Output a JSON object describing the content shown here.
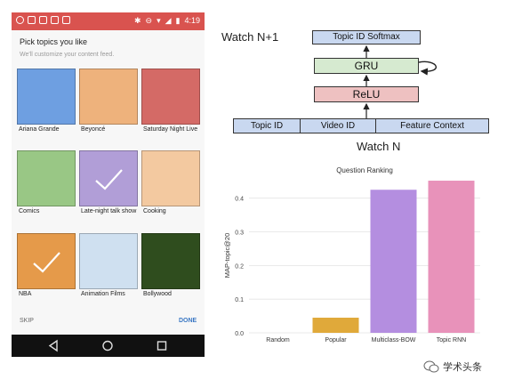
{
  "phone": {
    "status_time": "4:19",
    "title": "Pick topics you like",
    "subtitle": "We'll customize your content feed.",
    "tiles": [
      {
        "label": "Ariana Grande",
        "color": "#6e9fe1",
        "selected": false
      },
      {
        "label": "Beyoncé",
        "color": "#eeb27c",
        "selected": false
      },
      {
        "label": "Saturday Night Live",
        "color": "#d46a66",
        "selected": false
      },
      {
        "label": "Comics",
        "color": "#99c785",
        "selected": false
      },
      {
        "label": "Late-night talk show",
        "color": "#b19ed7",
        "selected": true
      },
      {
        "label": "Cooking",
        "color": "#f3c9a0",
        "selected": false
      },
      {
        "label": "NBA",
        "color": "#e59a4a",
        "selected": true
      },
      {
        "label": "Animation Films",
        "color": "#cfe0f0",
        "selected": false
      },
      {
        "label": "Bollywood",
        "color": "#2f4d1e",
        "selected": false
      }
    ],
    "skip_label": "SKIP",
    "done_label": "DONE"
  },
  "diagram": {
    "watch_next": "Watch N+1",
    "watch_current": "Watch N",
    "softmax_label": "Topic ID Softmax",
    "gru_label": "GRU",
    "relu_label": "ReLU",
    "inputs": [
      "Topic ID",
      "Video ID",
      "Feature Context"
    ],
    "colors": {
      "softmax": "#c9d8f0",
      "gru": "#d6ead0",
      "relu": "#eec1c1",
      "inputs": "#c9d8f0"
    }
  },
  "chart_data": {
    "type": "bar",
    "title": "Question Ranking",
    "ylabel": "MAP-topic@20",
    "xlabel": "",
    "categories": [
      "Random",
      "Popular",
      "Multiclass-BOW",
      "Topic RNN"
    ],
    "values": [
      0.0,
      0.045,
      0.425,
      0.452
    ],
    "colors": [
      "#cccccc",
      "#e0a93a",
      "#b48ee0",
      "#e892ba"
    ],
    "ylim": [
      0,
      0.46
    ],
    "yticks": [
      "0.0",
      "0.1",
      "0.2",
      "0.3",
      "0.4"
    ],
    "grid": true
  },
  "watermark": "学术头条"
}
